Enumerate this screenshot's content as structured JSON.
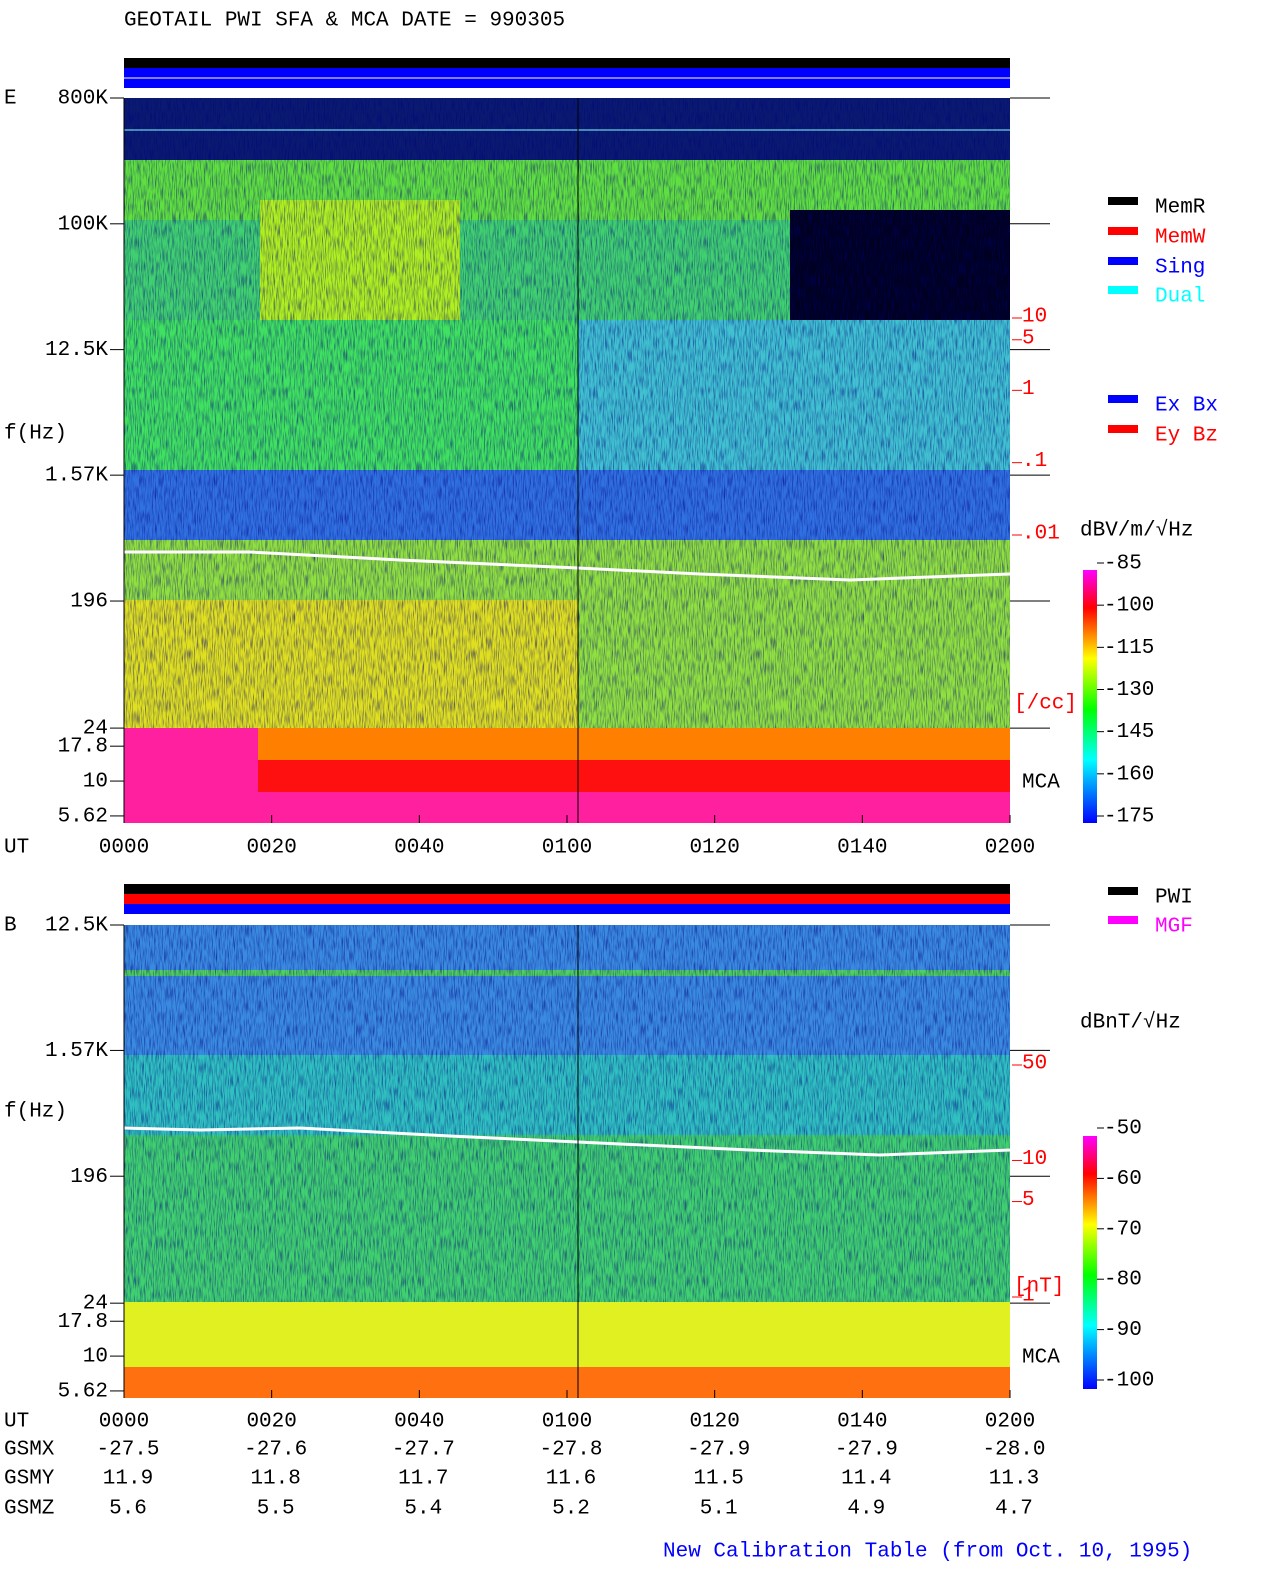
{
  "title": "GEOTAIL  PWI SFA & MCA   DATE = 990305",
  "footer": "New Calibration Table (from Oct. 10, 1995)",
  "ephemeris": [
    {
      "name": "GSMX",
      "values": [
        "-27.5",
        "-27.6",
        "-27.7",
        "-27.8",
        "-27.9",
        "-27.9",
        "-28.0"
      ]
    },
    {
      "name": "GSMY",
      "values": [
        "11.9",
        "11.8",
        "11.7",
        "11.6",
        "11.5",
        "11.4",
        "11.3"
      ]
    },
    {
      "name": "GSMZ",
      "values": [
        "5.6",
        "5.5",
        "5.4",
        "5.2",
        "5.1",
        "4.9",
        "4.7"
      ]
    }
  ],
  "chart_data": [
    {
      "type": "spectrogram",
      "panel_label": "E",
      "ylabel": "f(Hz)",
      "xlabel": "UT",
      "mca_label": "MCA",
      "log_y": true,
      "ylim": [
        5,
        800000
      ],
      "yticks": [
        {
          "value": 800000,
          "label": "800K"
        },
        {
          "value": 100000,
          "label": "100K"
        },
        {
          "value": 12500,
          "label": "12.5K"
        },
        {
          "value": 1570,
          "label": "1.57K"
        },
        196,
        24,
        17.8,
        10,
        5.62
      ],
      "x": [
        "0000",
        "0020",
        "0040",
        "0100",
        "0120",
        "0140",
        "0200"
      ],
      "y2lim": [
        0.01,
        10
      ],
      "y2ticks": [
        10,
        5,
        1,
        {
          "value": 0.1,
          "label": ".1"
        },
        {
          "value": 0.01,
          "label": ".01"
        }
      ],
      "y2label": "[/cc]",
      "colorbar": {
        "label": "dBV/m/√Hz",
        "lim": [
          -175,
          -85
        ],
        "ticks": [
          -85,
          -100,
          -115,
          -130,
          -145,
          -160,
          -175
        ]
      },
      "legend": [
        {
          "name": "MemR",
          "color": "#000000"
        },
        {
          "name": "MemW",
          "color": "#ff0000"
        },
        {
          "name": "Sing",
          "color": "#0000ff"
        },
        {
          "name": "Dual",
          "color": "#00ffff"
        },
        {
          "name": "Ex Bx",
          "color": "#0000ff"
        },
        {
          "name": "Ey Bz",
          "color": "#ff0000"
        }
      ]
    },
    {
      "type": "spectrogram",
      "panel_label": "B",
      "ylabel": "f(Hz)",
      "xlabel": "UT",
      "mca_label": "MCA",
      "log_y": true,
      "ylim": [
        5,
        12500
      ],
      "yticks": [
        {
          "value": 12500,
          "label": "12.5K"
        },
        {
          "value": 1570,
          "label": "1.57K"
        },
        196,
        24,
        17.8,
        10,
        5.62
      ],
      "x": [
        "0000",
        "0020",
        "0040",
        "0100",
        "0120",
        "0140",
        "0200"
      ],
      "y2lim": [
        1,
        50
      ],
      "y2ticks": [
        50,
        10,
        5,
        1
      ],
      "y2label": "[nT]",
      "colorbar": {
        "label": "dBnT/√Hz",
        "lim": [
          -100,
          -50
        ],
        "ticks": [
          -50,
          -60,
          -70,
          -80,
          -90,
          -100
        ]
      },
      "legend": [
        {
          "name": "PWI",
          "color": "#000000"
        },
        {
          "name": "MGF",
          "color": "#ff00ff"
        }
      ]
    }
  ]
}
